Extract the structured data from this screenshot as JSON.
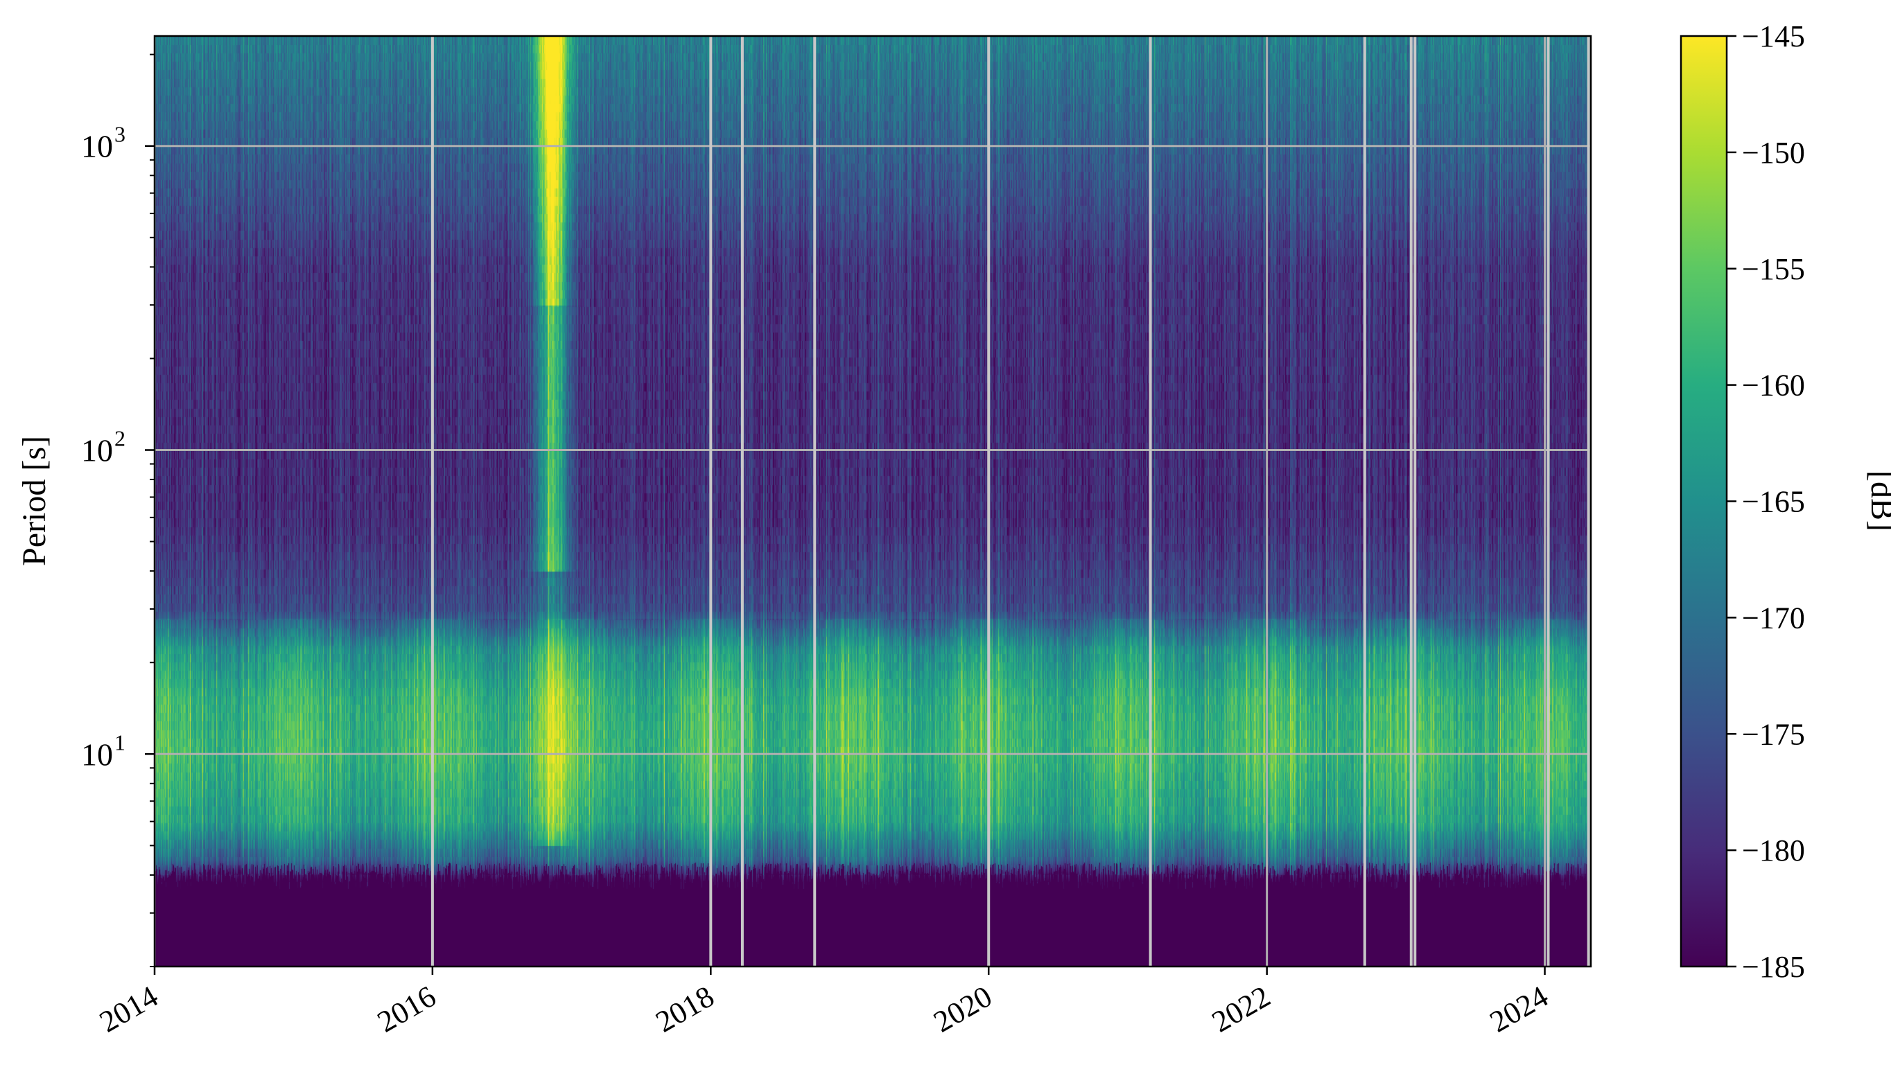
{
  "chart_data": {
    "type": "heatmap",
    "title": "",
    "xlabel": "",
    "ylabel": "Period [s]",
    "x_axis": {
      "type": "date",
      "range": [
        "2014-01-01",
        "2024-05-01"
      ],
      "ticks": [
        {
          "value": "2014-01-01",
          "label": "2014"
        },
        {
          "value": "2016-01-01",
          "label": "2016"
        },
        {
          "value": "2018-01-01",
          "label": "2018"
        },
        {
          "value": "2020-01-01",
          "label": "2020"
        },
        {
          "value": "2022-01-01",
          "label": "2022"
        },
        {
          "value": "2024-01-01",
          "label": "2024"
        }
      ],
      "tick_label_rotation_deg": 30
    },
    "y_axis": {
      "scale": "log",
      "range": [
        2,
        2300
      ],
      "major_ticks": [
        {
          "value": 10,
          "base": "10",
          "exp": "1"
        },
        {
          "value": 100,
          "base": "10",
          "exp": "2"
        },
        {
          "value": 1000,
          "base": "10",
          "exp": "3"
        }
      ]
    },
    "grid": true,
    "grid_color": "#b0b0b0",
    "colorbar": {
      "label": "[dB]",
      "colormap": "viridis",
      "range": [
        -185,
        -145
      ],
      "ticks": [
        -145,
        -150,
        -155,
        -160,
        -165,
        -170,
        -175,
        -180,
        -185
      ],
      "tick_labels": [
        "−145",
        "−150",
        "−155",
        "−160",
        "−165",
        "−170",
        "−175",
        "−180",
        "−185"
      ],
      "placement": "right"
    },
    "description_of_values": "Power spectral density in dB across time (2014–2024) and period (2–2300 s). Low values (≈ −185 dB) below ~4 s; a band of high values (≈ −160 to −150 dB) between ~5 s and ~25 s; mostly −180 to −175 dB between 30 s and 600 s; −172 to −165 dB above ~700 s; a strong bright feature (≈ −150 to −145 dB) near late 2016 across long periods; vertical grey gaps for missing data.",
    "gaps": [
      "2016-01-01",
      "2018-01-01",
      "2018-03-25",
      "2018-10-01",
      "2020-01-01",
      "2021-03-01",
      "2022-09-15",
      "2023-01-15",
      "2023-01-25",
      "2024-01-10",
      "2024-04-25"
    ],
    "profile": [
      {
        "period": 2.0,
        "db": -185
      },
      {
        "period": 3.8,
        "db": -185
      },
      {
        "period": 4.5,
        "db": -172
      },
      {
        "period": 6.0,
        "db": -162
      },
      {
        "period": 10.0,
        "db": -158
      },
      {
        "period": 15.0,
        "db": -159
      },
      {
        "period": 22.0,
        "db": -164
      },
      {
        "period": 30.0,
        "db": -176
      },
      {
        "period": 60.0,
        "db": -180
      },
      {
        "period": 150.0,
        "db": -180
      },
      {
        "period": 400.0,
        "db": -179
      },
      {
        "period": 700.0,
        "db": -175
      },
      {
        "period": 1400.0,
        "db": -171
      },
      {
        "period": 2300.0,
        "db": -168
      }
    ]
  }
}
